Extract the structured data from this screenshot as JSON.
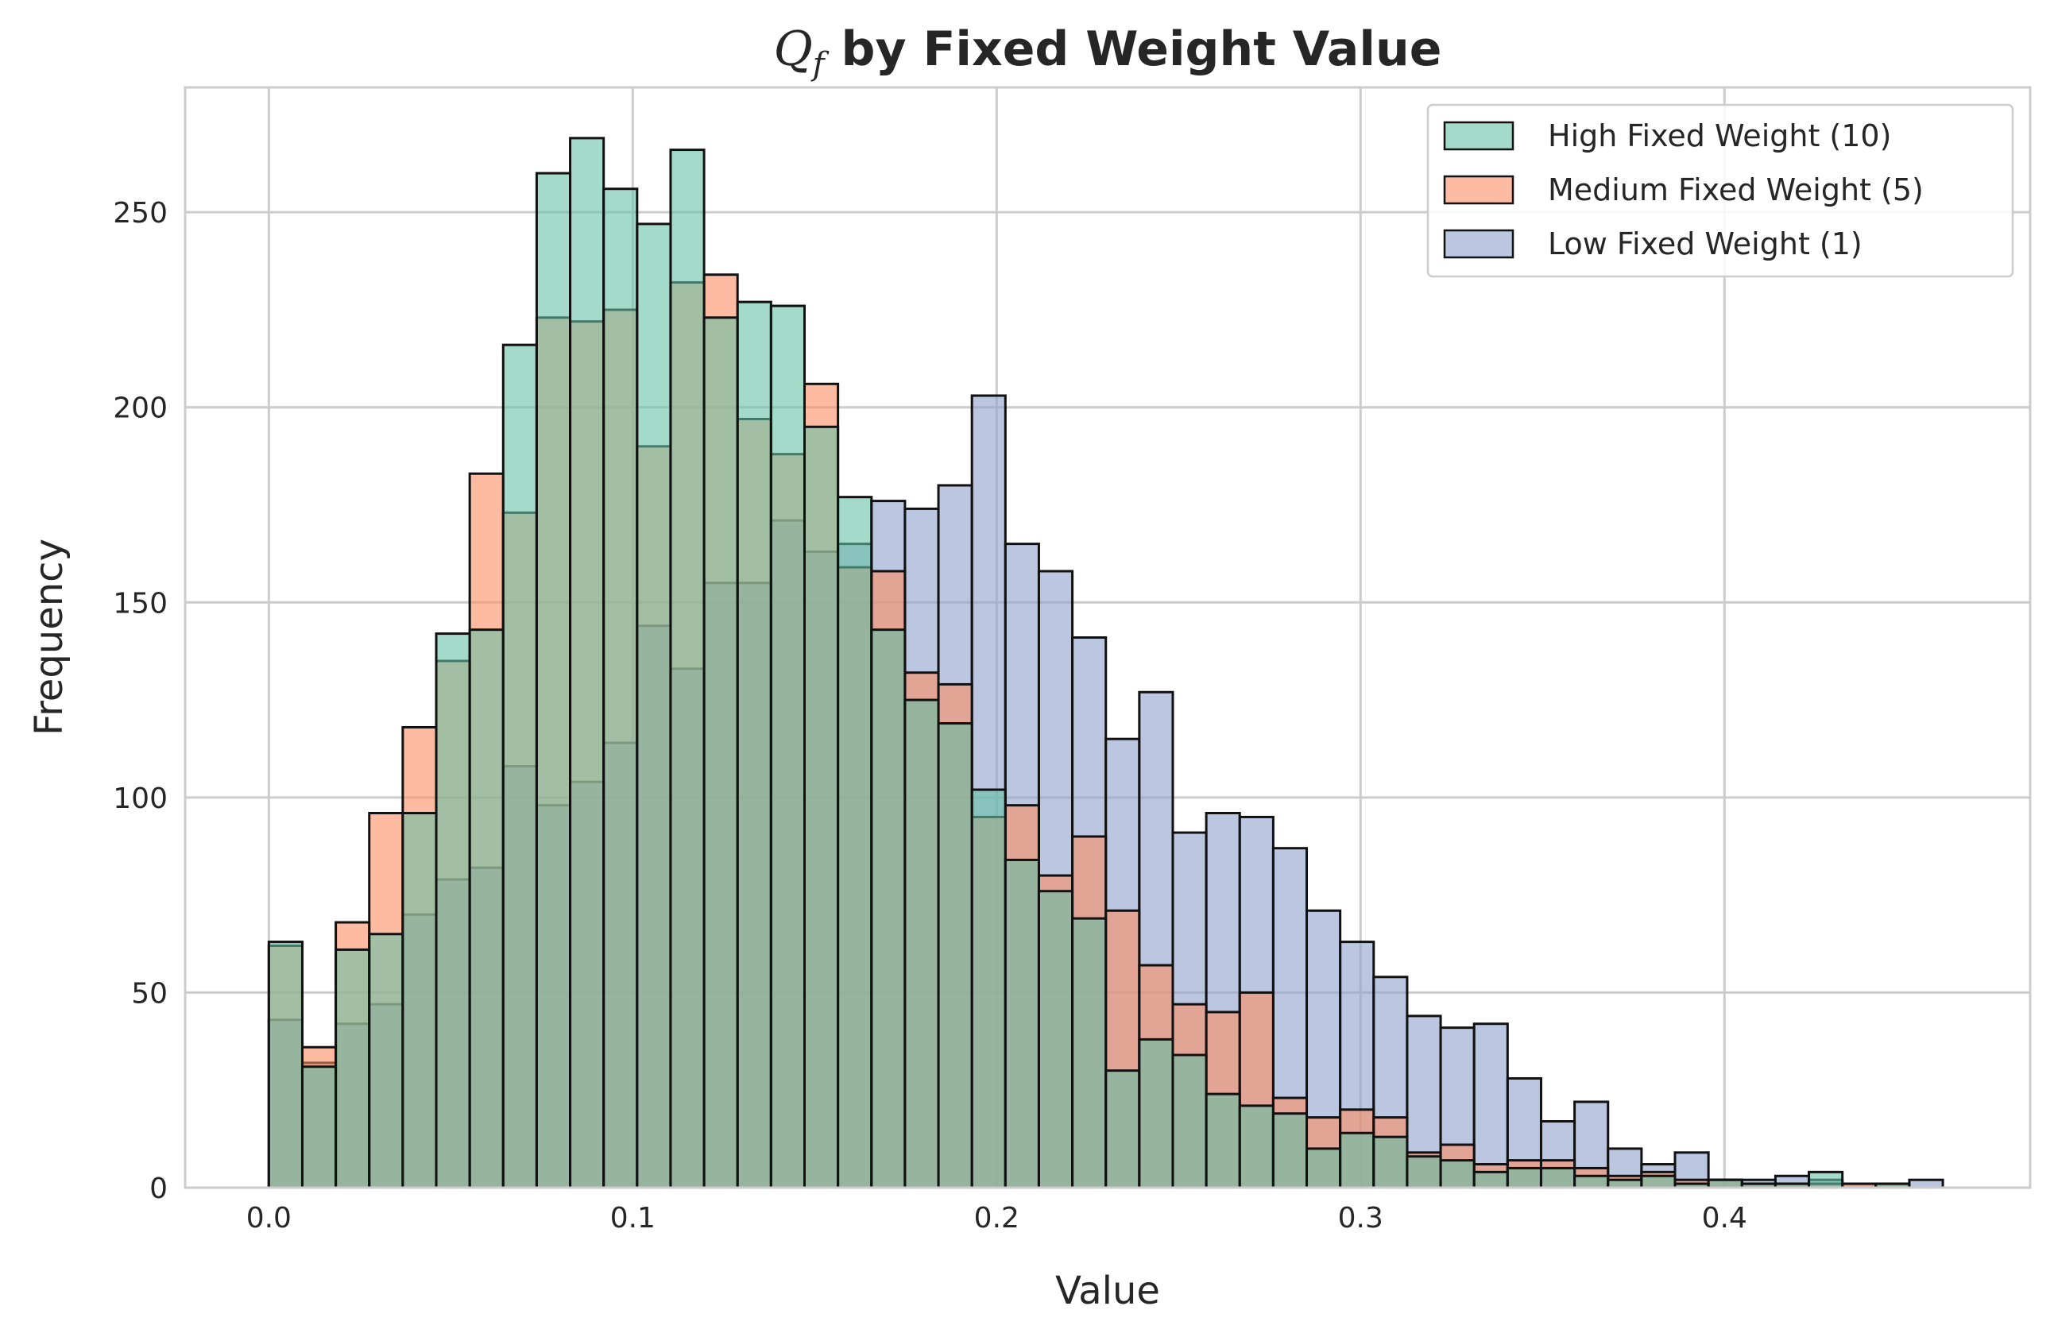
{
  "chart_data": {
    "type": "histogram",
    "title_math": "Q",
    "title_math_sub": "f",
    "title_rest": " by Fixed Weight Value",
    "xlabel": "Value",
    "ylabel": "Frequency",
    "xlim": [
      -0.023,
      0.484
    ],
    "ylim": [
      0,
      282
    ],
    "xticks": [
      0.0,
      0.1,
      0.2,
      0.3,
      0.4
    ],
    "xtick_labels": [
      "0.0",
      "0.1",
      "0.2",
      "0.3",
      "0.4"
    ],
    "yticks": [
      0,
      50,
      100,
      150,
      200,
      250
    ],
    "ytick_labels": [
      "0",
      "50",
      "100",
      "150",
      "200",
      "250"
    ],
    "grid": true,
    "legend_position": "top-right",
    "bin_start": 0.0,
    "bin_width": 0.0092,
    "series": [
      {
        "name": "High Fixed Weight (10)",
        "color": "#66c2a5",
        "values": [
          63,
          31,
          61,
          65,
          96,
          142,
          143,
          216,
          260,
          269,
          256,
          247,
          266,
          223,
          227,
          226,
          195,
          177,
          143,
          125,
          119,
          102,
          84,
          76,
          69,
          30,
          38,
          34,
          24,
          21,
          19,
          10,
          14,
          13,
          8,
          7,
          4,
          5,
          5,
          3,
          2,
          3,
          1,
          2,
          1,
          1,
          4,
          0,
          1,
          0
        ]
      },
      {
        "name": "Medium Fixed Weight (5)",
        "color": "#fc8d62",
        "values": [
          62,
          36,
          68,
          96,
          118,
          135,
          183,
          173,
          223,
          222,
          225,
          190,
          232,
          234,
          197,
          188,
          206,
          159,
          158,
          132,
          129,
          95,
          98,
          80,
          90,
          71,
          57,
          47,
          45,
          50,
          23,
          18,
          20,
          18,
          9,
          11,
          6,
          7,
          7,
          5,
          3,
          4,
          2,
          2,
          1,
          1,
          1,
          1,
          1,
          0
        ]
      },
      {
        "name": "Low Fixed Weight (1)",
        "color": "#8da0cb",
        "values": [
          43,
          32,
          42,
          47,
          70,
          79,
          82,
          108,
          98,
          104,
          114,
          144,
          133,
          155,
          155,
          171,
          163,
          165,
          176,
          174,
          180,
          203,
          165,
          158,
          141,
          115,
          127,
          91,
          96,
          95,
          87,
          71,
          63,
          54,
          44,
          41,
          42,
          28,
          17,
          22,
          10,
          6,
          9,
          2,
          2,
          3,
          2,
          1,
          1,
          2
        ]
      }
    ]
  }
}
